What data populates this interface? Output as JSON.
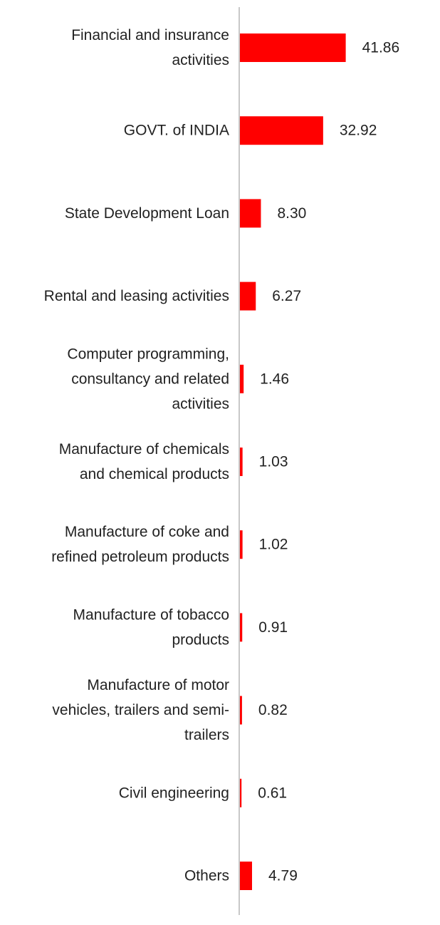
{
  "colors": {
    "bar": "#ff0000",
    "axis": "#c8c8c8",
    "text": "#222222"
  },
  "chart_data": {
    "type": "bar",
    "orientation": "horizontal",
    "title": "",
    "xlabel": "",
    "ylabel": "",
    "grid": false,
    "legend": "none",
    "xlim": [
      0,
      45
    ],
    "categories": [
      "Financial and insurance activities",
      "GOVT. of INDIA",
      "State Development Loan",
      "Rental and leasing activities",
      "Computer programming, consultancy and related activities",
      "Manufacture of chemicals and chemical products",
      "Manufacture of coke and refined petroleum products",
      "Manufacture of tobacco products",
      "Manufacture of motor vehicles, trailers and semi-trailers",
      "Civil engineering",
      "Others"
    ],
    "category_lines": [
      [
        "Financial and insurance",
        "activities"
      ],
      [
        "GOVT. of INDIA"
      ],
      [
        "State Development Loan"
      ],
      [
        "Rental and leasing activities"
      ],
      [
        "Computer programming,",
        "consultancy and related",
        "activities"
      ],
      [
        "Manufacture of chemicals",
        "and chemical products"
      ],
      [
        "Manufacture of coke and",
        "refined petroleum products"
      ],
      [
        "Manufacture of tobacco",
        "products"
      ],
      [
        "Manufacture of motor",
        "vehicles, trailers and semi-",
        "trailers"
      ],
      [
        "Civil engineering"
      ],
      [
        "Others"
      ]
    ],
    "values": [
      41.86,
      32.92,
      8.3,
      6.27,
      1.46,
      1.03,
      1.02,
      0.91,
      0.82,
      0.61,
      4.79
    ],
    "value_labels": [
      "41.86",
      "32.92",
      "8.30",
      "6.27",
      "1.46",
      "1.03",
      "1.02",
      "0.91",
      "0.82",
      "0.61",
      "4.79"
    ]
  }
}
